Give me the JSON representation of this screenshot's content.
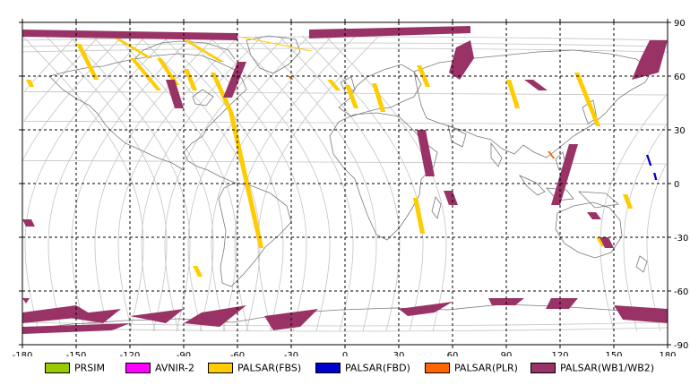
{
  "map": {
    "lon_range": [
      -180,
      180
    ],
    "lat_range": [
      -90,
      90
    ],
    "x_ticks": [
      "-180",
      "-150",
      "-120",
      "-90",
      "-60",
      "-30",
      "0",
      "30",
      "60",
      "90",
      "120",
      "150",
      "180"
    ],
    "y_ticks": [
      "90",
      "60",
      "30",
      "0",
      "-30",
      "-60",
      "-90"
    ],
    "grid": "dashed",
    "colors": {
      "coast": "#7a7a7a",
      "orbit": "#c4c4c4",
      "grid": "#000000",
      "fbs": "#ffcc00",
      "wb": "#993366",
      "fbd": "#0000cc",
      "plr": "#ff6600"
    }
  },
  "legend": [
    {
      "label": "PRSIM",
      "color": "#99cc00"
    },
    {
      "label": "AVNIR-2",
      "color": "#ff00ff"
    },
    {
      "label": "PALSAR(FBS)",
      "color": "#ffcc00"
    },
    {
      "label": "PALSAR(FBD)",
      "color": "#0000cc"
    },
    {
      "label": "PALSAR(PLR)",
      "color": "#ff6600"
    },
    {
      "label": "PALSAR(WB1/WB2)",
      "color": "#993366"
    }
  ]
}
